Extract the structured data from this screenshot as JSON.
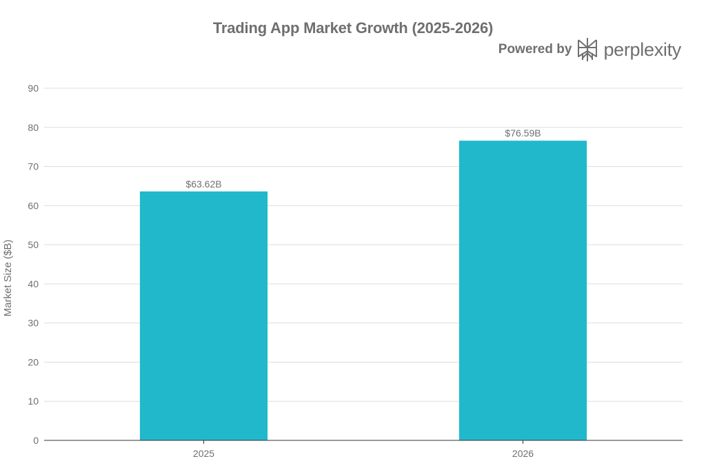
{
  "header": {
    "title": "Trading App Market Growth (2025-2026)",
    "brand_prefix": "Powered by",
    "brand_name": "perplexity",
    "brand_icon": "perplexity-logo-icon"
  },
  "chart_data": {
    "type": "bar",
    "title": "Trading App Market Growth (2025-2026)",
    "categories": [
      "2025",
      "2026"
    ],
    "values": [
      63.62,
      76.59
    ],
    "data_labels": [
      "$63.62B",
      "$76.59B"
    ],
    "xlabel": "",
    "ylabel": "Market Size ($B)",
    "ylim": [
      0,
      90
    ],
    "yticks": [
      0,
      10,
      20,
      30,
      40,
      50,
      60,
      70,
      80,
      90
    ],
    "grid": true,
    "legend": "none",
    "bar_color": "#21b8cc",
    "grid_color": "#dddddd",
    "axis_color": "#333333",
    "text_color": "#6f6f6f"
  }
}
